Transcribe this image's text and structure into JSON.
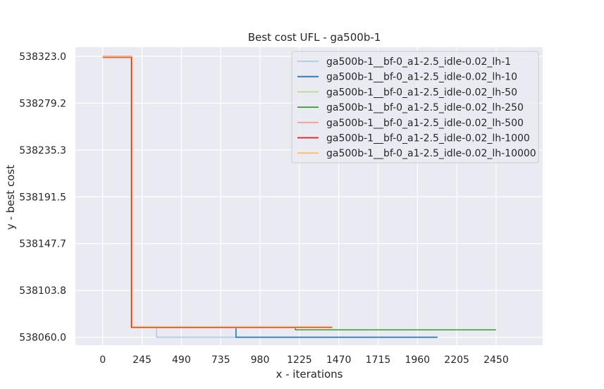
{
  "chart_data": {
    "type": "line",
    "title": "Best cost UFL - ga500b-1",
    "xlabel": "x - iterations",
    "ylabel": "y - best cost",
    "xlim": [
      -170,
      2740
    ],
    "ylim": [
      538052.5,
      538331.5
    ],
    "xticks": [
      0,
      245,
      490,
      735,
      980,
      1225,
      1470,
      1715,
      1960,
      2205,
      2450
    ],
    "yticks": [
      538060.0,
      538103.8,
      538147.7,
      538191.5,
      538235.3,
      538279.2,
      538323.0
    ],
    "xtick_labels": [
      "0",
      "245",
      "490",
      "735",
      "980",
      "1225",
      "1470",
      "1715",
      "1960",
      "2205",
      "2450"
    ],
    "ytick_labels": [
      "538060.0",
      "538103.8",
      "538147.7",
      "538191.5",
      "538235.3",
      "538279.2",
      "538323.0"
    ],
    "grid": true,
    "legend_position": "top-right",
    "step": true,
    "series": [
      {
        "name": "ga500b-1__bf-0_a1-2.5_idle-0.02_lh-1",
        "color": "#a6cee3",
        "points": [
          [
            0,
            538323.0
          ],
          [
            180,
            538323.0
          ],
          [
            180,
            538069.0
          ],
          [
            335,
            538069.0
          ],
          [
            335,
            538060.0
          ],
          [
            2085,
            538060.0
          ]
        ]
      },
      {
        "name": "ga500b-1__bf-0_a1-2.5_idle-0.02_lh-10",
        "color": "#1f78b4",
        "points": [
          [
            0,
            538323.0
          ],
          [
            180,
            538323.0
          ],
          [
            180,
            538069.0
          ],
          [
            830,
            538069.0
          ],
          [
            830,
            538060.0
          ],
          [
            2085,
            538060.0
          ]
        ]
      },
      {
        "name": "ga500b-1__bf-0_a1-2.5_idle-0.02_lh-50",
        "color": "#b2df8a",
        "points": [
          [
            0,
            538323.0
          ],
          [
            180,
            538323.0
          ],
          [
            180,
            538069.0
          ],
          [
            1430,
            538069.0
          ]
        ]
      },
      {
        "name": "ga500b-1__bf-0_a1-2.5_idle-0.02_lh-250",
        "color": "#33a02c",
        "points": [
          [
            0,
            538323.0
          ],
          [
            180,
            538323.0
          ],
          [
            180,
            538069.0
          ],
          [
            1200,
            538069.0
          ],
          [
            1200,
            538067.0
          ],
          [
            2450,
            538067.0
          ]
        ]
      },
      {
        "name": "ga500b-1__bf-0_a1-2.5_idle-0.02_lh-500",
        "color": "#fb9a99",
        "points": [
          [
            0,
            538323.0
          ],
          [
            180,
            538323.0
          ],
          [
            180,
            538069.0
          ],
          [
            1430,
            538069.0
          ]
        ]
      },
      {
        "name": "ga500b-1__bf-0_a1-2.5_idle-0.02_lh-1000",
        "color": "#e31a1c",
        "points": [
          [
            0,
            538322.0
          ],
          [
            180,
            538322.0
          ],
          [
            180,
            538069.5
          ],
          [
            1430,
            538069.5
          ]
        ]
      },
      {
        "name": "ga500b-1__bf-0_a1-2.5_idle-0.02_lh-10000",
        "color": "#fdbf6f",
        "points": [
          [
            0,
            538322.5
          ],
          [
            185,
            538322.5
          ],
          [
            185,
            538070.0
          ],
          [
            1430,
            538070.0
          ]
        ]
      }
    ]
  }
}
